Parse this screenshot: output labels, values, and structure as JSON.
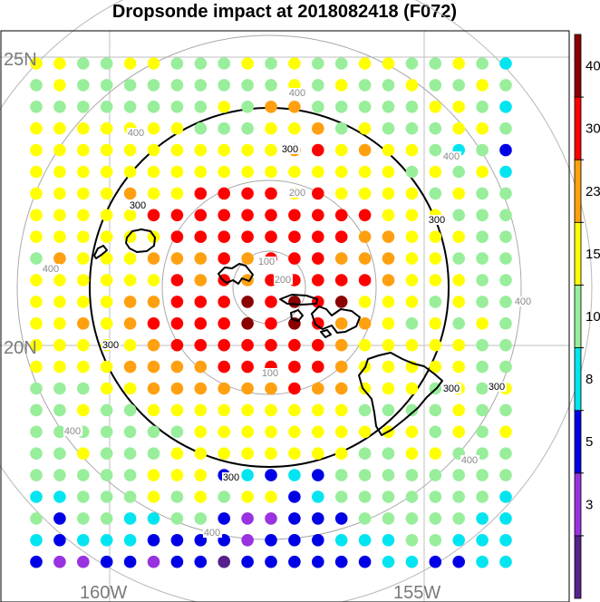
{
  "title": "Dropsonde impact at 2018082418 (F072)",
  "lat_labels": [
    {
      "text": "25N",
      "deg": 25
    },
    {
      "text": "20N",
      "deg": 20
    }
  ],
  "lon_labels": [
    {
      "text": "160W",
      "deg": -160
    },
    {
      "text": "155W",
      "deg": -155
    }
  ],
  "range_rings": [
    {
      "label": "100",
      "style": "gray"
    },
    {
      "label": "200",
      "style": "gray"
    },
    {
      "label": "300",
      "style": "black"
    },
    {
      "label": "400",
      "style": "gray"
    }
  ],
  "colorbar": {
    "colors": [
      "#55228c",
      "#9932e0",
      "#0000e6",
      "#00e5f0",
      "#98ee9a",
      "#ffff00",
      "#ffa010",
      "#ff0000",
      "#8b0000"
    ],
    "labels": [
      "3",
      "5",
      "8",
      "10",
      "15",
      "23",
      "30",
      "40"
    ]
  },
  "chart_data": {
    "type": "scatter",
    "description_key": "dot grid of impact categories (index into colorbar.colors)",
    "rows_north_to_south": [
      "554455444545445544543",
      "454444444445454454454",
      "444444445466444445543",
      "555555544455645444554",
      "555555555556756554342",
      "555555555555555545453",
      "555565577775755554544",
      "555557777777777555444",
      "555555777777776655544",
      "465556667677766655444",
      "555555767677777655544",
      "555566777878785554544",
      "556567777878766545454",
      "555556777777765555544",
      "555566667777765555544",
      "444556666667665554545",
      "445445555555554444544",
      "444444455555555554545",
      "445444555555554455444",
      "444445552323244444444",
      "334445454552344444443",
      "424433442112224444433",
      "323332222122233344333",
      "211221220222222332233"
    ]
  }
}
